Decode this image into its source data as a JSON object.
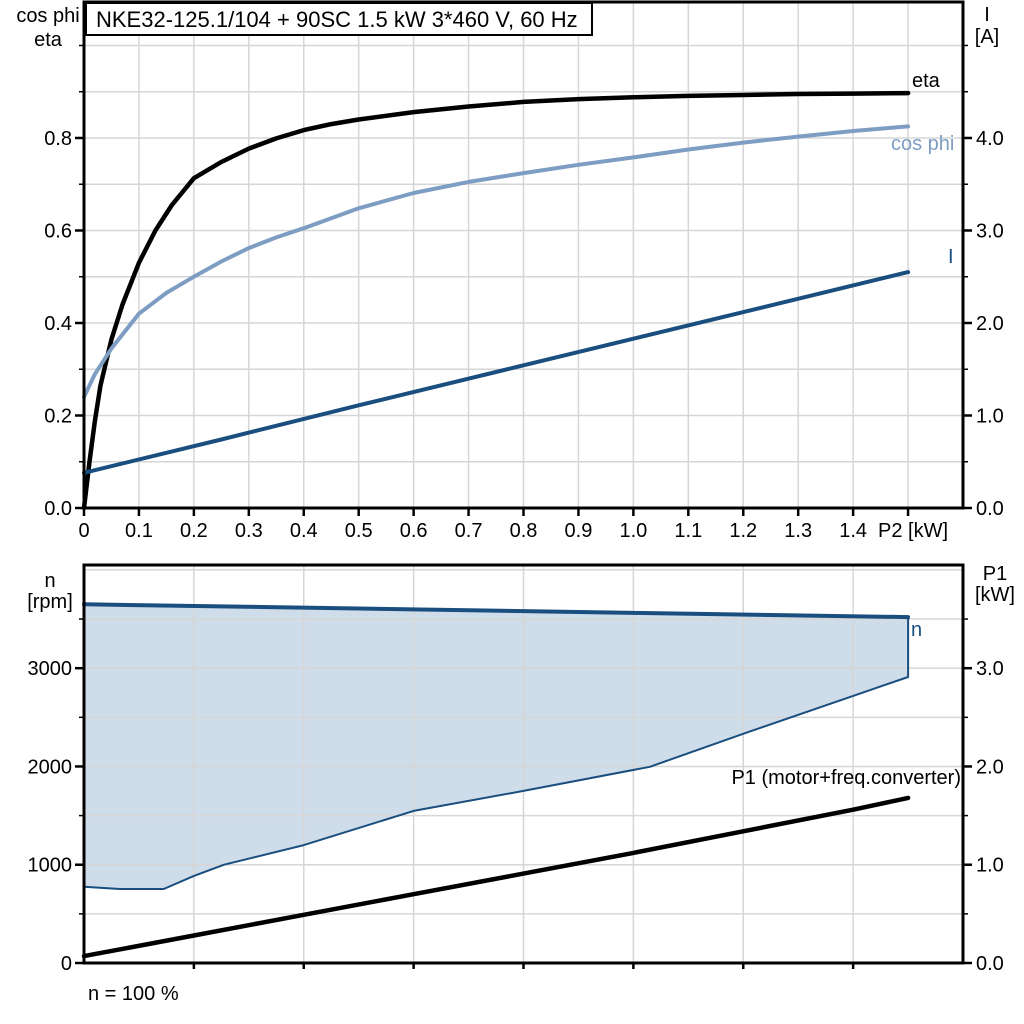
{
  "page_background": "#FFFFFF",
  "colors": {
    "eta": "#000000",
    "cos_phi": "#7D9DC2",
    "current": "#1A4E7F",
    "n_region_fill": "#CFDCE9",
    "n_region_border": "#1A4E7F",
    "p1": "#000000",
    "grid": "#D6D6D6",
    "axis": "#000000",
    "title_box_bg": "#FFFFFF"
  },
  "chart_data": [
    {
      "type": "line",
      "title": "NKE32-125.1/104 + 90SC   1.5 kW   3*460 V, 60 Hz",
      "x_axis": {
        "label": "P2 [kW]",
        "range": [
          0,
          1.6
        ],
        "ticks": [
          {
            "v": 0,
            "l": "0"
          },
          {
            "v": 0.1,
            "l": "0.1"
          },
          {
            "v": 0.2,
            "l": "0.2"
          },
          {
            "v": 0.3,
            "l": "0.3"
          },
          {
            "v": 0.4,
            "l": "0.4"
          },
          {
            "v": 0.5,
            "l": "0.5"
          },
          {
            "v": 0.6,
            "l": "0.6"
          },
          {
            "v": 0.7,
            "l": "0.7"
          },
          {
            "v": 0.8,
            "l": "0.8"
          },
          {
            "v": 0.9,
            "l": "0.9"
          },
          {
            "v": 1.0,
            "l": "1.0"
          },
          {
            "v": 1.1,
            "l": "1.1"
          },
          {
            "v": 1.2,
            "l": "1.2"
          },
          {
            "v": 1.3,
            "l": "1.3"
          },
          {
            "v": 1.4,
            "l": "1.4"
          },
          {
            "v": 1.5,
            "l": ""
          }
        ],
        "grid": [
          0.1,
          0.2,
          0.3,
          0.4,
          0.5,
          0.6,
          0.7,
          0.8,
          0.9,
          1.0,
          1.1,
          1.2,
          1.3,
          1.4,
          1.5
        ]
      },
      "y_left": {
        "title_lines": [
          "cos phi",
          "eta"
        ],
        "range": [
          0,
          1.094
        ],
        "major_ticks": [
          {
            "v": 0,
            "l": "0.0"
          },
          {
            "v": 0.2,
            "l": "0.2"
          },
          {
            "v": 0.4,
            "l": "0.4"
          },
          {
            "v": 0.6,
            "l": "0.6"
          },
          {
            "v": 0.8,
            "l": "0.8"
          }
        ],
        "minor_ticks": [
          0.1,
          0.3,
          0.5,
          0.7,
          0.9,
          1.0
        ],
        "grid": [
          0.1,
          0.2,
          0.3,
          0.4,
          0.5,
          0.6,
          0.7,
          0.8,
          0.9,
          1.0
        ]
      },
      "y_right": {
        "title_lines": [
          "I",
          "[A]"
        ],
        "range": [
          0,
          5.47
        ],
        "major_ticks": [
          {
            "v": 0,
            "l": "0.0"
          },
          {
            "v": 1,
            "l": "1.0"
          },
          {
            "v": 2,
            "l": "2.0"
          },
          {
            "v": 3,
            "l": "3.0"
          },
          {
            "v": 4,
            "l": "4.0"
          }
        ],
        "minor_ticks": [
          0.5,
          1.5,
          2.5,
          3.5,
          4.5,
          5.0
        ]
      },
      "series": [
        {
          "name": "eta",
          "label": "eta",
          "axis": "left",
          "color_key": "eta",
          "width": 4.5,
          "x": [
            0,
            0.01,
            0.02,
            0.03,
            0.05,
            0.07,
            0.1,
            0.13,
            0.16,
            0.2,
            0.25,
            0.3,
            0.35,
            0.4,
            0.45,
            0.5,
            0.6,
            0.7,
            0.8,
            0.9,
            1.0,
            1.1,
            1.2,
            1.3,
            1.4,
            1.5
          ],
          "values": [
            0,
            0.1,
            0.19,
            0.265,
            0.365,
            0.44,
            0.53,
            0.6,
            0.655,
            0.713,
            0.748,
            0.777,
            0.799,
            0.817,
            0.83,
            0.84,
            0.856,
            0.868,
            0.878,
            0.884,
            0.888,
            0.891,
            0.893,
            0.895,
            0.896,
            0.897
          ]
        },
        {
          "name": "cos_phi",
          "label": "cos phi",
          "axis": "left",
          "color_key": "cos_phi",
          "width": 4,
          "x": [
            0,
            0.02,
            0.05,
            0.1,
            0.15,
            0.2,
            0.25,
            0.3,
            0.35,
            0.4,
            0.5,
            0.6,
            0.7,
            0.8,
            0.9,
            1.0,
            1.1,
            1.2,
            1.3,
            1.4,
            1.5
          ],
          "values": [
            0.24,
            0.29,
            0.345,
            0.42,
            0.465,
            0.5,
            0.533,
            0.562,
            0.585,
            0.605,
            0.648,
            0.681,
            0.705,
            0.724,
            0.742,
            0.758,
            0.775,
            0.79,
            0.803,
            0.815,
            0.825
          ]
        },
        {
          "name": "current",
          "label": "I",
          "axis": "right",
          "color_key": "current",
          "width": 4,
          "x": [
            0,
            0.25,
            0.5,
            0.75,
            1.0,
            1.25,
            1.5
          ],
          "values": [
            0.38,
            0.74,
            1.11,
            1.47,
            1.83,
            2.19,
            2.55
          ]
        }
      ]
    },
    {
      "type": "area",
      "title": "",
      "x_axis": {
        "label": "",
        "range": [
          0,
          1.6
        ],
        "ticks": [
          {
            "v": 0.2,
            "l": ""
          },
          {
            "v": 0.4,
            "l": ""
          },
          {
            "v": 0.6,
            "l": ""
          },
          {
            "v": 0.8,
            "l": ""
          },
          {
            "v": 1.0,
            "l": ""
          },
          {
            "v": 1.2,
            "l": ""
          },
          {
            "v": 1.4,
            "l": ""
          }
        ],
        "grid": [
          0.2,
          0.4,
          0.6,
          0.8,
          1.0,
          1.2,
          1.4
        ]
      },
      "y_left": {
        "title_lines": [
          "n",
          "[rpm]"
        ],
        "range": [
          0,
          4050
        ],
        "major_ticks": [
          {
            "v": 0,
            "l": "0"
          },
          {
            "v": 1000,
            "l": "1000"
          },
          {
            "v": 2000,
            "l": "2000"
          },
          {
            "v": 3000,
            "l": "3000"
          }
        ],
        "minor_ticks": [
          500,
          1500,
          2500,
          3500
        ],
        "grid": [
          500,
          1000,
          1500,
          2000,
          2500,
          3000,
          3500,
          4000
        ]
      },
      "y_right": {
        "title_lines": [
          "P1",
          "[kW]"
        ],
        "range": [
          0,
          4.05
        ],
        "major_ticks": [
          {
            "v": 0,
            "l": "0.0"
          },
          {
            "v": 1,
            "l": "1.0"
          },
          {
            "v": 2,
            "l": "2.0"
          },
          {
            "v": 3,
            "l": "3.0"
          }
        ],
        "minor_ticks": [
          0.5,
          1.5,
          2.5,
          3.5
        ]
      },
      "region": {
        "name": "n",
        "label": "n",
        "top": [
          [
            0,
            3650
          ],
          [
            0.5,
            3607
          ],
          [
            1.0,
            3563
          ],
          [
            1.5,
            3520
          ]
        ],
        "bottom": [
          [
            0,
            775
          ],
          [
            0.065,
            753
          ],
          [
            0.145,
            753
          ],
          [
            0.2,
            886
          ],
          [
            0.255,
            1000
          ],
          [
            0.4,
            1200
          ],
          [
            0.6,
            1548
          ],
          [
            0.8,
            1751
          ],
          [
            1.03,
            1996
          ],
          [
            1.2,
            2332
          ],
          [
            1.4,
            2718
          ],
          [
            1.5,
            2910
          ]
        ]
      },
      "series": [
        {
          "name": "p1",
          "label": "P1 (motor+freq.converter)",
          "axis": "right",
          "color_key": "p1",
          "width": 4.5,
          "x": [
            0,
            0.2,
            0.4,
            0.6,
            0.8,
            1.0,
            1.2,
            1.4,
            1.5
          ],
          "values": [
            0.07,
            0.28,
            0.49,
            0.7,
            0.91,
            1.12,
            1.34,
            1.56,
            1.68
          ]
        }
      ],
      "annotation": "n = 100 %"
    }
  ]
}
